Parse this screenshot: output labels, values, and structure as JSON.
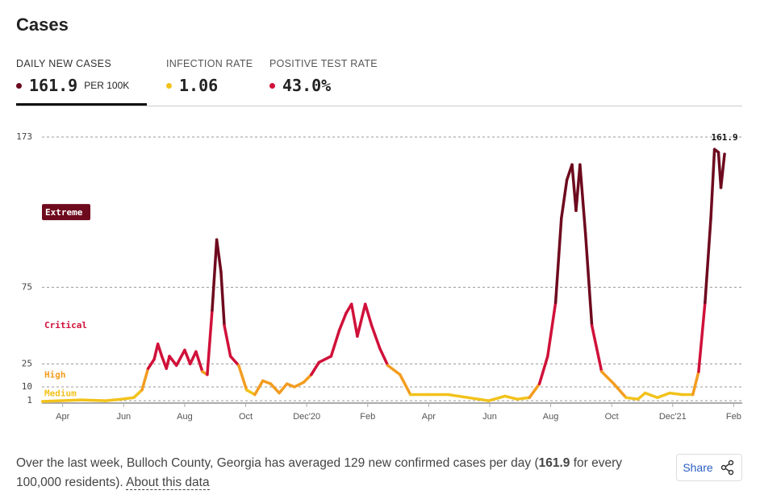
{
  "header": {
    "title": "Cases"
  },
  "tabs": [
    {
      "label": "DAILY NEW CASES",
      "value": "161.9",
      "unit": "PER 100K",
      "color": "#6e0a1e"
    },
    {
      "label": "INFECTION RATE",
      "value": "1.06",
      "color": "#f2c21b"
    },
    {
      "label": "POSITIVE TEST RATE",
      "value": "43.0%",
      "color": "#d0113a"
    }
  ],
  "chart_data": {
    "type": "line",
    "x": [
      2.34,
      3.6,
      4.4,
      4.93,
      5.33,
      5.6,
      5.8,
      6.0,
      6.12,
      6.25,
      6.4,
      6.5,
      6.73,
      7.0,
      7.18,
      7.37,
      7.58,
      7.74,
      7.9,
      8.05,
      8.19,
      8.3,
      8.5,
      8.77,
      9.03,
      9.3,
      9.56,
      9.82,
      10.1,
      10.35,
      10.6,
      10.9,
      11.15,
      11.4,
      11.8,
      12.07,
      12.29,
      12.47,
      12.66,
      12.92,
      13.13,
      13.4,
      13.66,
      14.06,
      14.4,
      15.0,
      15.64,
      16.3,
      16.97,
      17.5,
      17.9,
      18.3,
      18.63,
      18.9,
      19.16,
      19.35,
      19.53,
      19.7,
      19.83,
      19.96,
      20.14,
      20.35,
      20.67,
      21.07,
      21.47,
      21.86,
      22.1,
      22.5,
      22.9,
      23.3,
      23.66,
      23.85,
      24.06,
      24.25,
      24.37,
      24.5,
      24.58,
      24.7
    ],
    "values": [
      0.5,
      1.5,
      1,
      2,
      3,
      8,
      22,
      28,
      38,
      30,
      22,
      30,
      24,
      34,
      25,
      33,
      20,
      18,
      60,
      106,
      85,
      50,
      30,
      24,
      8,
      5,
      14,
      12,
      6,
      12,
      10,
      13,
      18,
      26,
      30,
      47,
      58,
      64,
      43,
      64,
      50,
      35,
      24,
      18,
      5,
      5,
      5,
      3,
      1,
      4,
      2,
      3,
      12,
      30,
      65,
      120,
      145,
      155,
      125,
      155,
      110,
      50,
      20,
      12,
      3,
      2,
      6,
      3,
      6,
      5,
      5,
      20,
      65,
      120,
      165,
      163,
      140,
      161.9
    ],
    "xlim": [
      2.32,
      25.28
    ],
    "xticks": [
      {
        "value": 3,
        "label": "Apr"
      },
      {
        "value": 5,
        "label": "Jun"
      },
      {
        "value": 7,
        "label": "Aug"
      },
      {
        "value": 9,
        "label": "Oct"
      },
      {
        "value": 11,
        "label": "Dec'20"
      },
      {
        "value": 13,
        "label": "Feb"
      },
      {
        "value": 15,
        "label": "Apr"
      },
      {
        "value": 17,
        "label": "Jun"
      },
      {
        "value": 19,
        "label": "Aug"
      },
      {
        "value": 21,
        "label": "Oct"
      },
      {
        "value": 23,
        "label": "Dec'21"
      },
      {
        "value": 25,
        "label": "Feb"
      }
    ],
    "ylim": [
      0,
      173
    ],
    "yticks": [
      1,
      10,
      25,
      75,
      173
    ],
    "grid": true,
    "below_color": "#2e9e44",
    "levels": [
      {
        "name": "Medium",
        "min": 1,
        "max": 10,
        "color": "#f2c21b"
      },
      {
        "name": "High",
        "min": 10,
        "max": 25,
        "color": "#f39c1f"
      },
      {
        "name": "Critical",
        "min": 25,
        "max": 75,
        "color": "#d0113a"
      },
      {
        "name": "Extreme",
        "min": 75,
        "max": 173,
        "color": "#6e0a1e"
      }
    ]
  },
  "footer": {
    "text_before": "Over the last week, Bulloch County, Georgia has averaged 129 new confirmed cases per day (",
    "bold": "161.9",
    "text_after": " for every 100,000 residents). ",
    "link": "About this data",
    "share": "Share"
  }
}
